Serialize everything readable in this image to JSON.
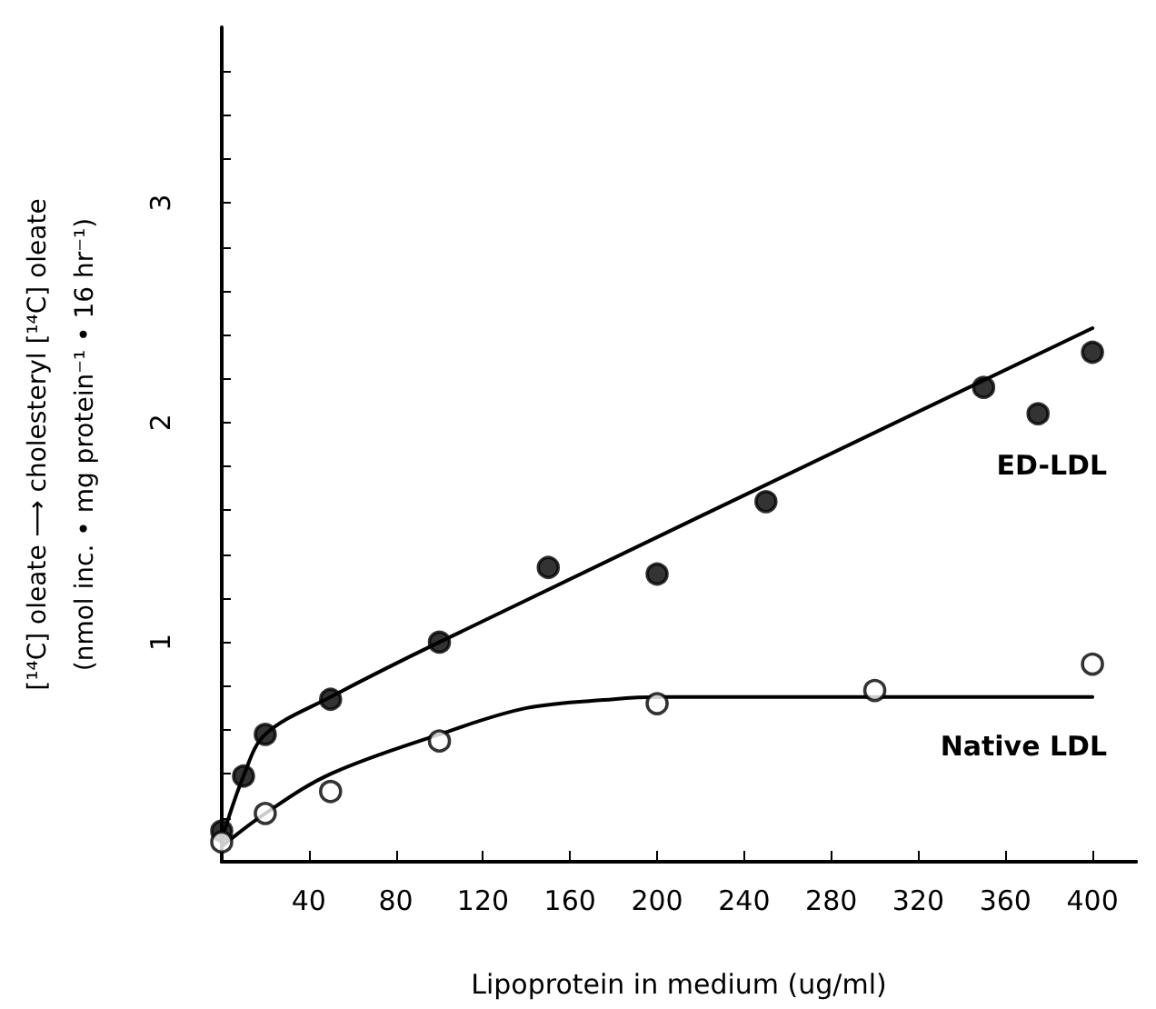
{
  "chart_data": {
    "type": "scatter",
    "xlabel": "Lipoprotein in medium (ug/ml)",
    "ylabel": "[¹⁴C] oleate ⟶ cholesteryl [¹⁴C] oleate\n(nmol inc. • mg protein⁻¹ • 16 hr⁻¹)",
    "xlim": [
      0,
      420
    ],
    "ylim": [
      0,
      3.8
    ],
    "xticks": [
      40,
      80,
      120,
      160,
      200,
      240,
      280,
      320,
      360,
      400
    ],
    "yticks": [
      {
        "value": 0.2,
        "label": null
      },
      {
        "value": 0.4,
        "label": null
      },
      {
        "value": 0.6,
        "label": null
      },
      {
        "value": 0.8,
        "label": null
      },
      1,
      {
        "value": 1.2,
        "label": null
      },
      {
        "value": 1.4,
        "label": null
      },
      {
        "value": 1.6,
        "label": null
      },
      {
        "value": 1.8,
        "label": null
      },
      2,
      {
        "value": 2.2,
        "label": null
      },
      {
        "value": 2.4,
        "label": null
      },
      {
        "value": 2.6,
        "label": null
      },
      {
        "value": 2.8,
        "label": null
      },
      3,
      {
        "value": 3.2,
        "label": null
      },
      {
        "value": 3.4,
        "label": null
      },
      {
        "value": 3.6,
        "label": null
      }
    ],
    "grid": false,
    "legend": false,
    "marker": "circle",
    "series": [
      {
        "name": "ED-LDL",
        "color": "#000000",
        "x": [
          0,
          10,
          20,
          50,
          100,
          150,
          200,
          250,
          350,
          375,
          400
        ],
        "values": [
          0.14,
          0.39,
          0.58,
          0.74,
          1.0,
          1.34,
          1.31,
          1.64,
          2.16,
          2.04,
          2.32
        ]
      },
      {
        "name": "Native LDL",
        "color": "#ffffff",
        "x": [
          0,
          20,
          50,
          100,
          200,
          300,
          400
        ],
        "values": [
          0.09,
          0.22,
          0.32,
          0.55,
          0.72,
          0.78,
          0.9
        ]
      },
      {
        "type": "line",
        "color": "#000000",
        "marker": "none",
        "x": [
          0,
          10,
          20,
          50,
          100,
          400
        ],
        "values": [
          0.1,
          0.39,
          0.58,
          0.75,
          1.0,
          2.43
        ]
      },
      {
        "type": "line",
        "color": "#000000",
        "marker": "none",
        "x": [
          0,
          20,
          50,
          100,
          140,
          180,
          200,
          400
        ],
        "values": [
          0.07,
          0.22,
          0.4,
          0.58,
          0.7,
          0.74,
          0.75,
          0.75
        ]
      }
    ]
  }
}
